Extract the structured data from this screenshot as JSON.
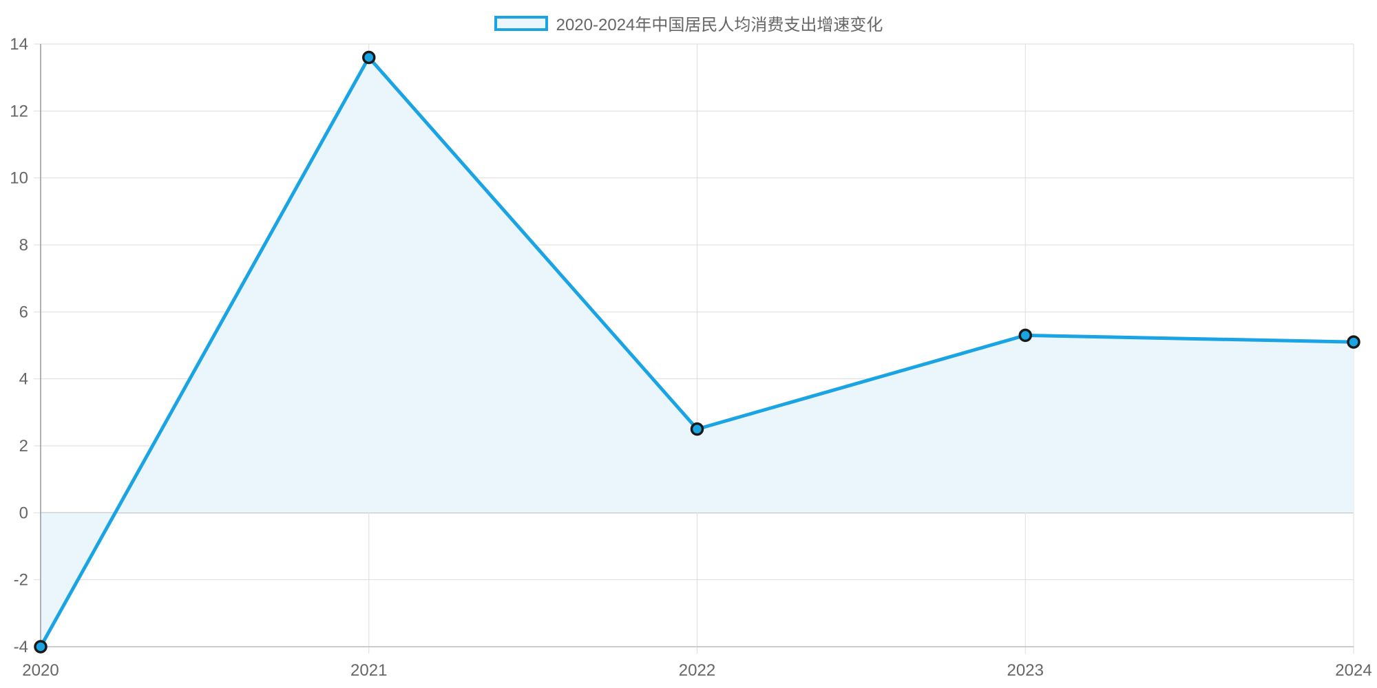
{
  "colors": {
    "line": "#1aa4e4",
    "fill": "#eaf6fc",
    "point_border": "#1a1a1a",
    "grid": "#dddddd",
    "zero_line": "#aaaaaa",
    "tick_text": "#666666"
  },
  "chart_data": {
    "type": "line",
    "categories": [
      "2020",
      "2021",
      "2022",
      "2023",
      "2024"
    ],
    "series": [
      {
        "name": "2020-2024年中国居民人均消费支出增速变化",
        "values": [
          -4.0,
          13.6,
          2.5,
          5.3,
          5.1
        ]
      }
    ],
    "ylim": [
      -4,
      14
    ],
    "yticks": [
      -4,
      -2,
      0,
      2,
      4,
      6,
      8,
      10,
      12,
      14
    ],
    "grid": true,
    "fill_area": true,
    "legend_position": "top-center"
  }
}
